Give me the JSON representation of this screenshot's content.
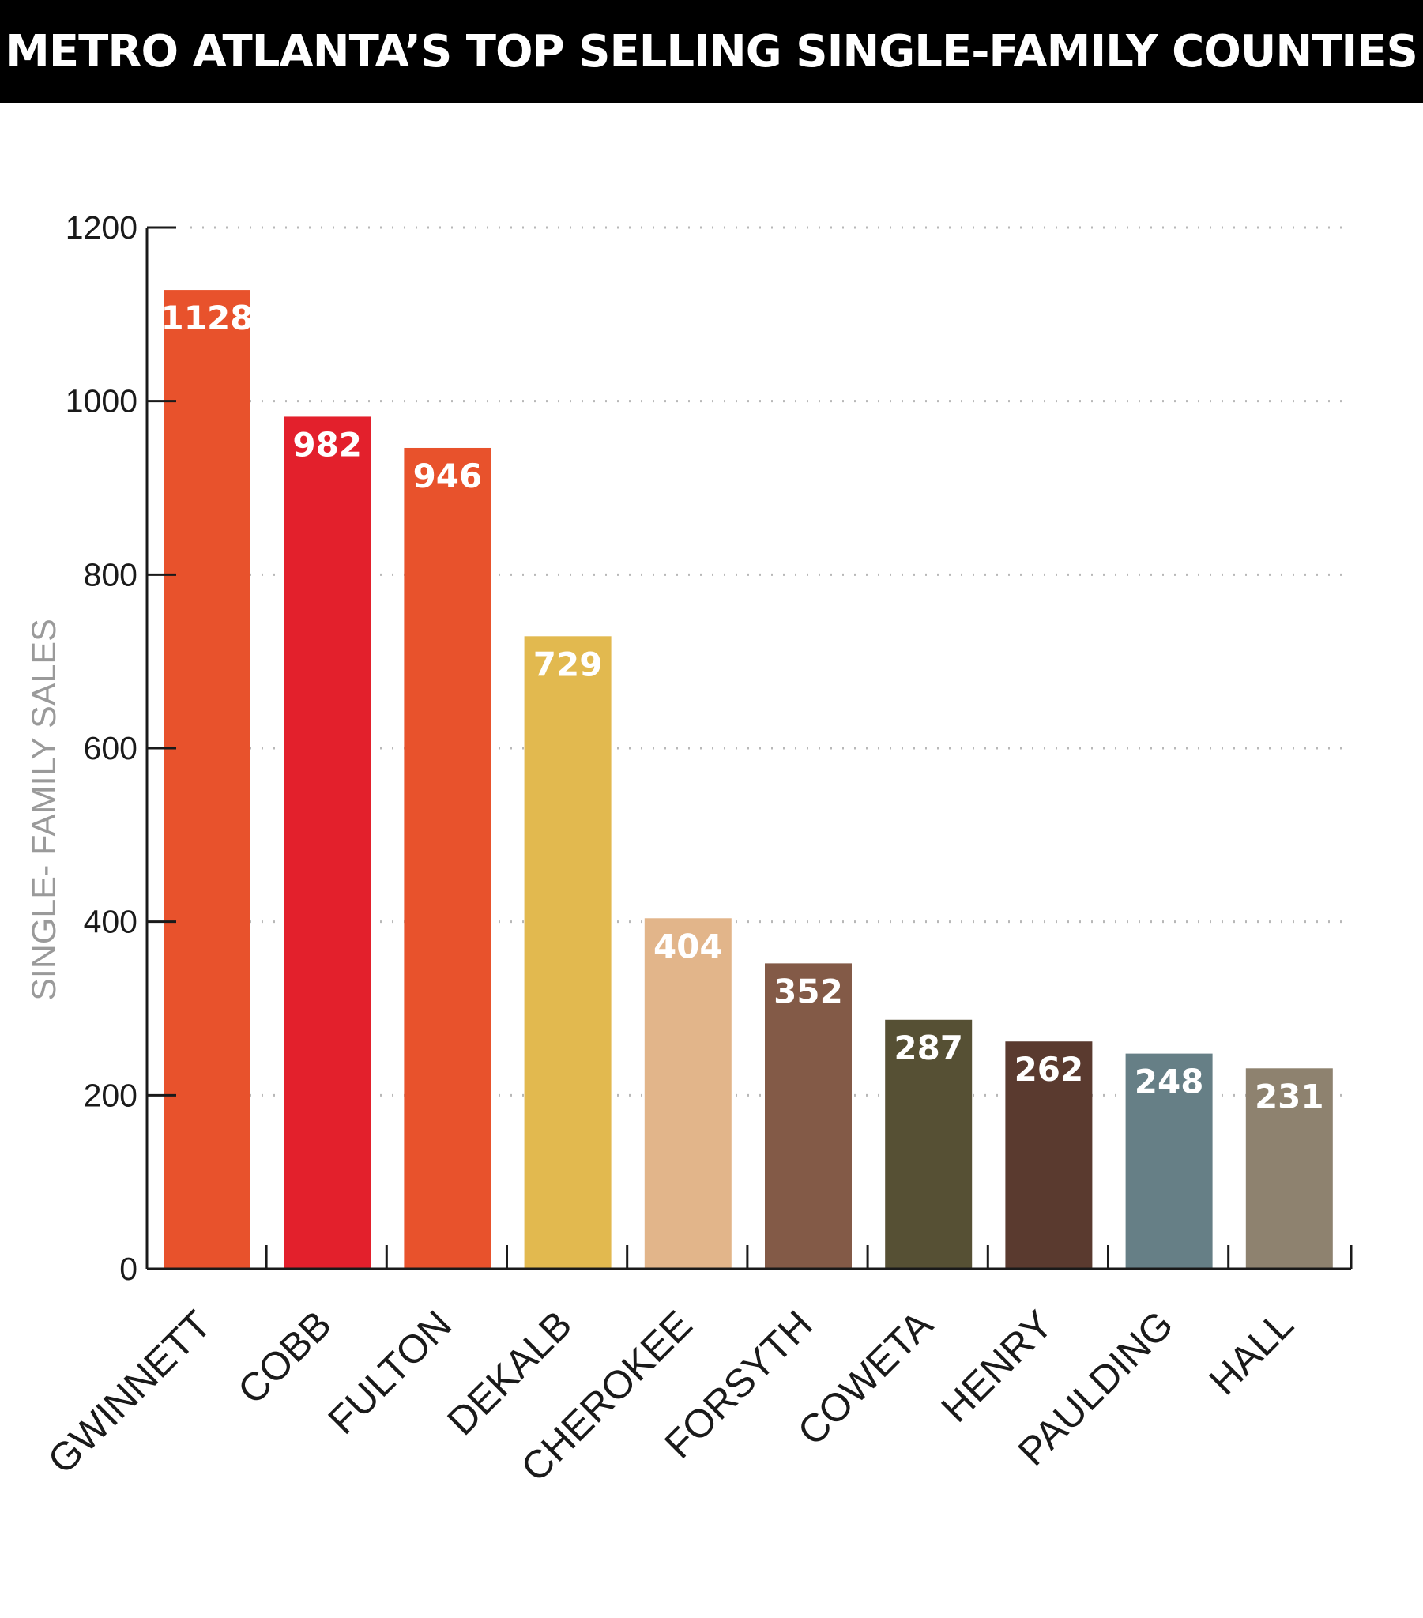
{
  "chart_data": {
    "type": "bar",
    "title": "METRO ATLANTA’S TOP SELLING SINGLE-FAMILY COUNTIES",
    "xlabel": "",
    "ylabel": "SINGLE- FAMILY SALES",
    "ylim": [
      0,
      1200
    ],
    "yticks": [
      0,
      200,
      400,
      600,
      800,
      1000,
      1200
    ],
    "grid": true,
    "categories": [
      "GWINNETT",
      "COBB",
      "FULTON",
      "DEKALB",
      "CHEROKEE",
      "FORSYTH",
      "COWETA",
      "HENRY",
      "PAULDING",
      "HALL"
    ],
    "values": [
      1128,
      982,
      946,
      729,
      404,
      352,
      287,
      262,
      248,
      231
    ],
    "colors": [
      "#E8522C",
      "#E3202C",
      "#E8522C",
      "#E2B94F",
      "#E2B58A",
      "#835A47",
      "#565034",
      "#5A3A2F",
      "#667F86",
      "#8E826F"
    ]
  }
}
